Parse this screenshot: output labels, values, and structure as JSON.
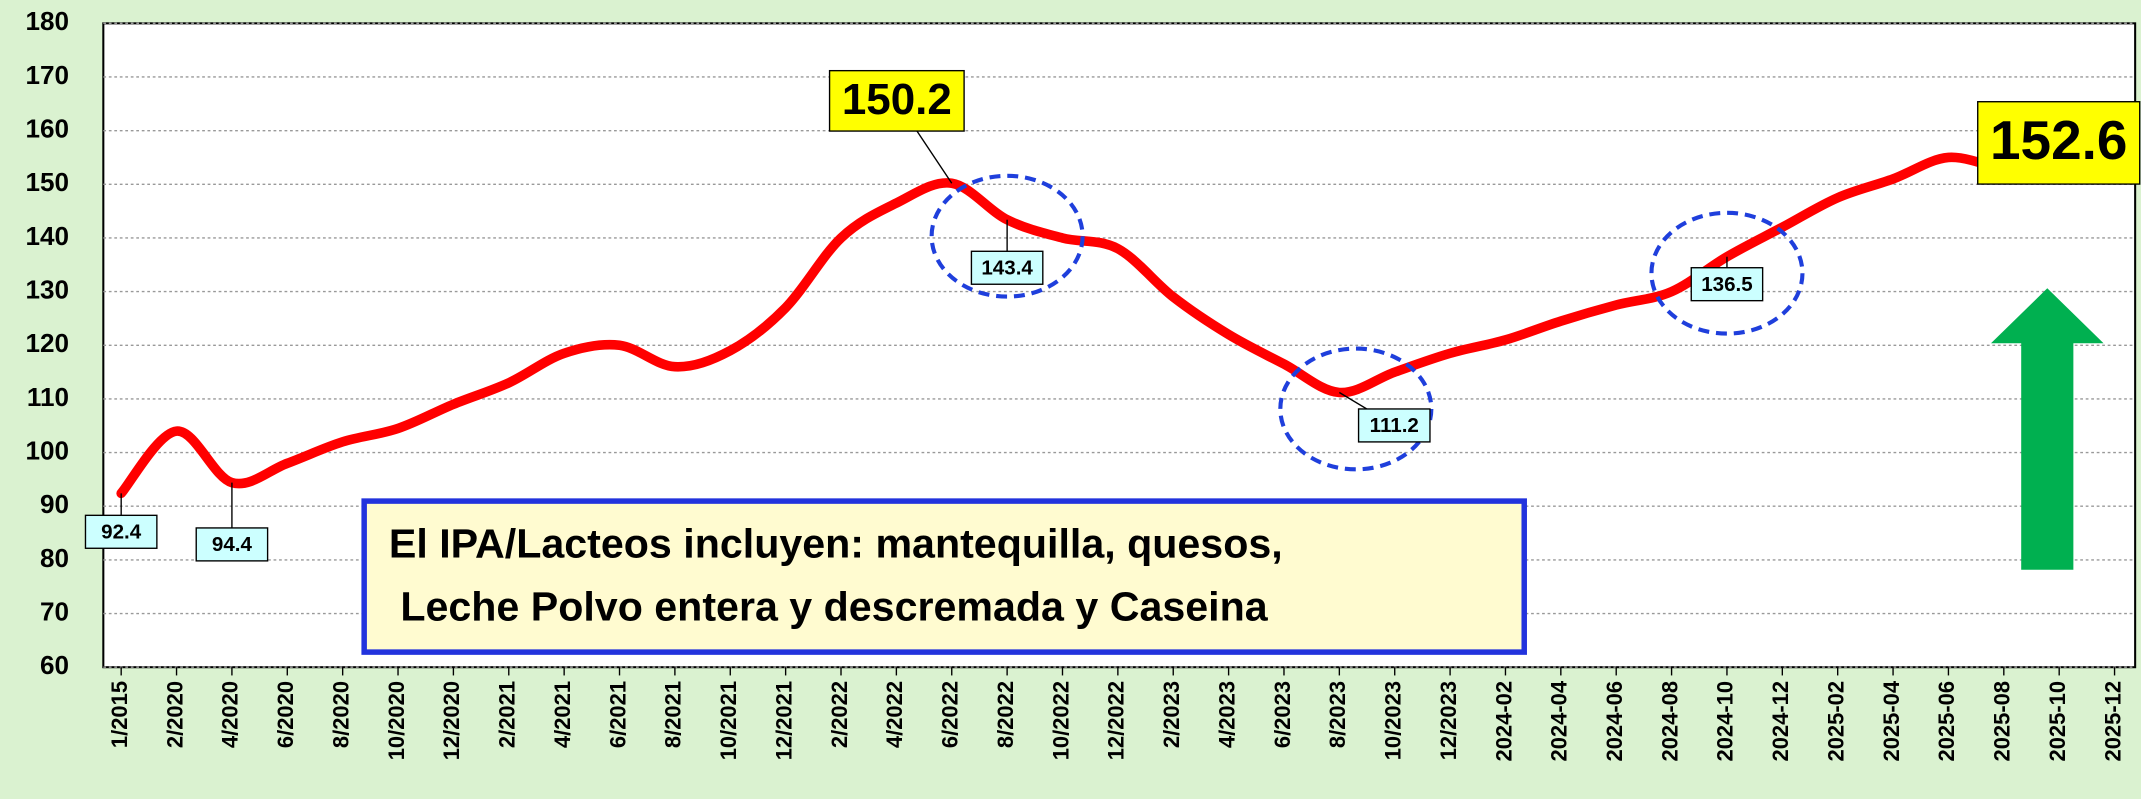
{
  "chart_data": {
    "type": "line",
    "categories": [
      "1/2015",
      "2/2020",
      "4/2020",
      "6/2020",
      "8/2020",
      "10/2020",
      "12/2020",
      "2/2021",
      "4/2021",
      "6/2021",
      "8/2021",
      "10/2021",
      "12/2021",
      "2/2022",
      "4/2022",
      "6/2022",
      "8/2022",
      "10/2022",
      "12/2022",
      "2/2023",
      "4/2023",
      "6/2023",
      "8/2023",
      "10/2023",
      "12/2023",
      "2024-02",
      "2024-04",
      "2024-06",
      "2024-08",
      "2024-10",
      "2024-12",
      "2025-02",
      "2025-04",
      "2025-06",
      "2025-08",
      "2025-10",
      "2025-12"
    ],
    "series": [
      {
        "name": "IPA/Lacteos",
        "color": "#ff0000",
        "values": [
          92.4,
          104,
          94.4,
          98,
          102,
          104.5,
          109,
          113,
          118.5,
          120,
          116,
          119,
          127,
          140,
          146.5,
          150.2,
          143.4,
          140,
          138,
          129,
          122,
          116.5,
          111.2,
          115,
          118.5,
          121,
          124.5,
          127.5,
          130,
          136.5,
          142,
          147.5,
          151,
          155,
          152.6,
          null,
          null
        ]
      }
    ],
    "labeled_points": [
      0,
      2,
      15,
      16,
      22,
      29,
      34
    ],
    "highlight_points": [
      15,
      34
    ],
    "circled_points": [
      16,
      22,
      29
    ],
    "ylim": [
      60,
      180
    ],
    "yticks": [
      60,
      70,
      80,
      90,
      100,
      110,
      120,
      130,
      140,
      150,
      160,
      170,
      180
    ],
    "grid": true,
    "annotation": [
      "El IPA/Lacteos incluyen: mantequilla, quesos,",
      " Leche Polvo entera y descremada y Caseina"
    ]
  }
}
